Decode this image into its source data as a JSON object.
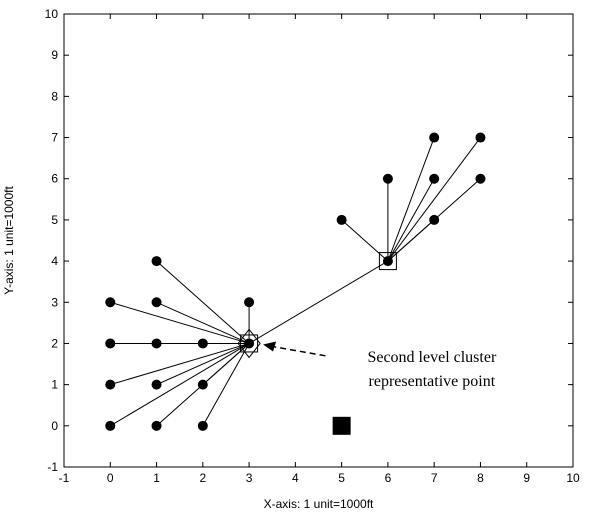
{
  "chart_data": {
    "type": "scatter",
    "xlabel": "X-axis: 1 unit=1000ft",
    "ylabel": "Y-axis: 1 unit=1000ft",
    "xlim": [
      -1,
      10
    ],
    "ylim": [
      -1,
      10
    ],
    "xticks": [
      -1,
      0,
      1,
      2,
      3,
      4,
      5,
      6,
      7,
      8,
      9,
      10
    ],
    "yticks": [
      -1,
      0,
      1,
      2,
      3,
      4,
      5,
      6,
      7,
      8,
      9,
      10
    ],
    "grid": false,
    "points": [
      {
        "x": 0,
        "y": 0
      },
      {
        "x": 1,
        "y": 0
      },
      {
        "x": 2,
        "y": 0
      },
      {
        "x": 0,
        "y": 1
      },
      {
        "x": 1,
        "y": 1
      },
      {
        "x": 2,
        "y": 1
      },
      {
        "x": 0,
        "y": 2
      },
      {
        "x": 1,
        "y": 2
      },
      {
        "x": 2,
        "y": 2
      },
      {
        "x": 0,
        "y": 3
      },
      {
        "x": 1,
        "y": 3
      },
      {
        "x": 3,
        "y": 3
      },
      {
        "x": 1,
        "y": 4
      },
      {
        "x": 3,
        "y": 2
      },
      {
        "x": 5,
        "y": 5
      },
      {
        "x": 6,
        "y": 6
      },
      {
        "x": 7,
        "y": 7
      },
      {
        "x": 7,
        "y": 6
      },
      {
        "x": 7,
        "y": 5
      },
      {
        "x": 8,
        "y": 7
      },
      {
        "x": 8,
        "y": 6
      },
      {
        "x": 6,
        "y": 4
      }
    ],
    "links": [
      {
        "from": [
          0,
          0
        ],
        "to": [
          3,
          2
        ]
      },
      {
        "from": [
          1,
          0
        ],
        "to": [
          3,
          2
        ]
      },
      {
        "from": [
          2,
          0
        ],
        "to": [
          3,
          2
        ]
      },
      {
        "from": [
          0,
          1
        ],
        "to": [
          3,
          2
        ]
      },
      {
        "from": [
          1,
          1
        ],
        "to": [
          3,
          2
        ]
      },
      {
        "from": [
          2,
          1
        ],
        "to": [
          3,
          2
        ]
      },
      {
        "from": [
          0,
          2
        ],
        "to": [
          3,
          2
        ]
      },
      {
        "from": [
          0,
          3
        ],
        "to": [
          3,
          2
        ]
      },
      {
        "from": [
          1,
          3
        ],
        "to": [
          3,
          2
        ]
      },
      {
        "from": [
          1,
          4
        ],
        "to": [
          3,
          2
        ]
      },
      {
        "from": [
          3,
          3
        ],
        "to": [
          3,
          2
        ]
      },
      {
        "from": [
          5,
          5
        ],
        "to": [
          6,
          4
        ]
      },
      {
        "from": [
          6,
          6
        ],
        "to": [
          6,
          4
        ]
      },
      {
        "from": [
          7,
          7
        ],
        "to": [
          6,
          4
        ]
      },
      {
        "from": [
          7,
          6
        ],
        "to": [
          6,
          4
        ]
      },
      {
        "from": [
          7,
          5
        ],
        "to": [
          6,
          4
        ]
      },
      {
        "from": [
          8,
          7
        ],
        "to": [
          6,
          4
        ]
      },
      {
        "from": [
          8,
          6
        ],
        "to": [
          6,
          4
        ]
      },
      {
        "from": [
          6,
          4
        ],
        "to": [
          3,
          2
        ]
      }
    ],
    "cluster_heads": [
      {
        "x": 3,
        "y": 2
      },
      {
        "x": 6,
        "y": 4
      }
    ],
    "second_level_representative": {
      "x": 3,
      "y": 2
    },
    "base_station": {
      "x": 5,
      "y": 0
    },
    "annotation": {
      "lines": [
        "Second level cluster",
        "representative point"
      ],
      "arrow_to": {
        "x": 3,
        "y": 2
      }
    }
  }
}
